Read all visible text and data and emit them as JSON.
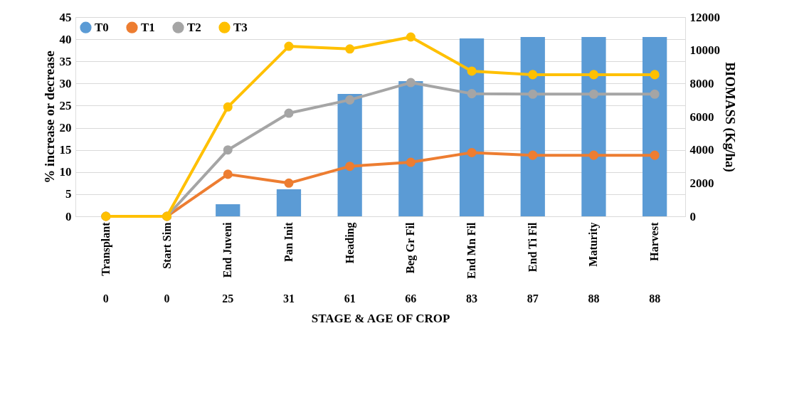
{
  "chart_data": {
    "type": "line",
    "xlabel": "STAGE & AGE OF CROP",
    "ylabel": "% increase or decrease",
    "y2label": "BIOMASS (Kg/ha)",
    "categories": [
      "Transplant",
      "Start Sim",
      "End Juveni",
      "Pan Init",
      "Heading",
      "Beg Gr Fil",
      "End Mn Fil",
      "End Ti Fil",
      "Maturity",
      "Harvest"
    ],
    "series": [
      {
        "name": "T0",
        "type": "bar",
        "axis": "y2",
        "color": "#5b9bd5",
        "values": [
          null,
          null,
          730,
          1630,
          7370,
          8140,
          10710,
          10800,
          10800,
          10800
        ]
      },
      {
        "name": "T1",
        "color": "#ed7d31",
        "values": [
          0,
          0,
          9.5,
          7.5,
          11.3,
          12.2,
          14.4,
          13.8,
          13.8,
          13.8
        ]
      },
      {
        "name": "T2",
        "color": "#a5a5a5",
        "values": [
          0,
          0,
          15,
          23.3,
          26.3,
          30.2,
          27.7,
          27.6,
          27.6,
          27.6
        ]
      },
      {
        "name": "T3",
        "color": "#ffc000",
        "values": [
          0,
          0,
          24.7,
          38.4,
          37.8,
          40.5,
          32.8,
          32.0,
          32.0,
          32.0
        ]
      }
    ],
    "ylim": [
      0,
      45
    ],
    "yticks": [
      0,
      5,
      10,
      15,
      20,
      25,
      30,
      35,
      40,
      45
    ],
    "y2lim": [
      0,
      12000
    ],
    "y2ticks": [
      0,
      2000,
      4000,
      6000,
      8000,
      10000,
      12000
    ],
    "grid": "y",
    "legend": "top left",
    "marker": "circle",
    "annotations": [
      "0",
      "0",
      "25",
      "31",
      "61",
      "66",
      "83",
      "87",
      "88",
      "88"
    ]
  }
}
